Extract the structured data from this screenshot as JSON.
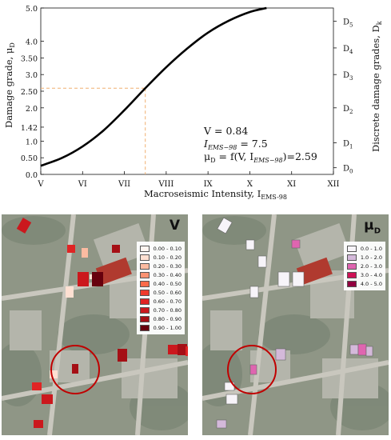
{
  "chart_data": {
    "type": "line",
    "xlabel_main": "Macroseismic Intensity, I",
    "xlabel_sub": "EMS-98",
    "ylabel_main": "Damage grade, μ",
    "ylabel_sub": "D",
    "ylabel_right_main": "Discrete damage grades, D",
    "ylabel_right_sub": "k",
    "x_ticks": [
      "V",
      "VI",
      "VII",
      "VIII",
      "IX",
      "X",
      "XI",
      "XII"
    ],
    "xlim": [
      5,
      12
    ],
    "ylim": [
      0,
      5
    ],
    "y_ticks": [
      {
        "value": 0.0,
        "label": "0.0"
      },
      {
        "value": 0.5,
        "label": "0.50"
      },
      {
        "value": 1.0,
        "label": "1.0"
      },
      {
        "value": 1.42,
        "label": "1.42"
      },
      {
        "value": 2.0,
        "label": "2.0"
      },
      {
        "value": 2.5,
        "label": "2.50"
      },
      {
        "value": 3.0,
        "label": "3.0"
      },
      {
        "value": 3.5,
        "label": "3.50"
      },
      {
        "value": 4.0,
        "label": "4.0"
      },
      {
        "value": 5.0,
        "label": "5.0"
      }
    ],
    "right_ticks": [
      {
        "value": 0.2,
        "label": "D",
        "sub": "0"
      },
      {
        "value": 0.95,
        "label": "D",
        "sub": "1"
      },
      {
        "value": 2.0,
        "label": "D",
        "sub": "2"
      },
      {
        "value": 3.0,
        "label": "D",
        "sub": "3"
      },
      {
        "value": 3.8,
        "label": "D",
        "sub": "4"
      },
      {
        "value": 4.6,
        "label": "D",
        "sub": "5"
      }
    ],
    "series": [
      {
        "x": [
          5.0,
          5.5,
          6.0,
          6.5,
          7.0,
          7.5,
          8.0,
          8.5,
          9.0,
          9.5,
          10.0,
          10.4
        ],
        "y": [
          0.26,
          0.49,
          0.84,
          1.32,
          1.93,
          2.59,
          3.22,
          3.78,
          4.26,
          4.62,
          4.88,
          5.0
        ]
      }
    ],
    "guide_point": {
      "x": 7.5,
      "y": 2.59
    },
    "annotations": {
      "v_line": "V = 0.84",
      "i_line": "I",
      "i_sub": "EMS−98",
      "i_val": " = 7.5",
      "mu_line": "μ",
      "mu_sub": "D",
      "mu_mid": " = f(V, I",
      "mu_sub2": "EMS−98",
      "mu_end": ")=2.59"
    }
  },
  "maps": {
    "left": {
      "title": "V",
      "legend": [
        "0.00 - 0.10",
        "0.10 - 0.20",
        "0.20 - 0.30",
        "0.30 - 0.40",
        "0.40 - 0.50",
        "0.50 - 0.60",
        "0.60 - 0.70",
        "0.70 - 0.80",
        "0.80 - 0.90",
        "0.90 - 1.00"
      ],
      "colors": [
        "#fff5f0",
        "#fee0d2",
        "#fcbba1",
        "#fc9272",
        "#fb6a4a",
        "#ef3b2c",
        "#e02424",
        "#cb181d",
        "#a50f15",
        "#67000d"
      ]
    },
    "right": {
      "title": "μ",
      "title_sub": "D",
      "legend": [
        "0.0 - 1.0",
        "1.0 - 2.0",
        "2.0 - 3.0",
        "3.0 - 4.0",
        "4.0 - 5.0"
      ],
      "colors": [
        "#f7f4f9",
        "#d4b9da",
        "#df65b0",
        "#ce1256",
        "#91003f"
      ]
    }
  }
}
